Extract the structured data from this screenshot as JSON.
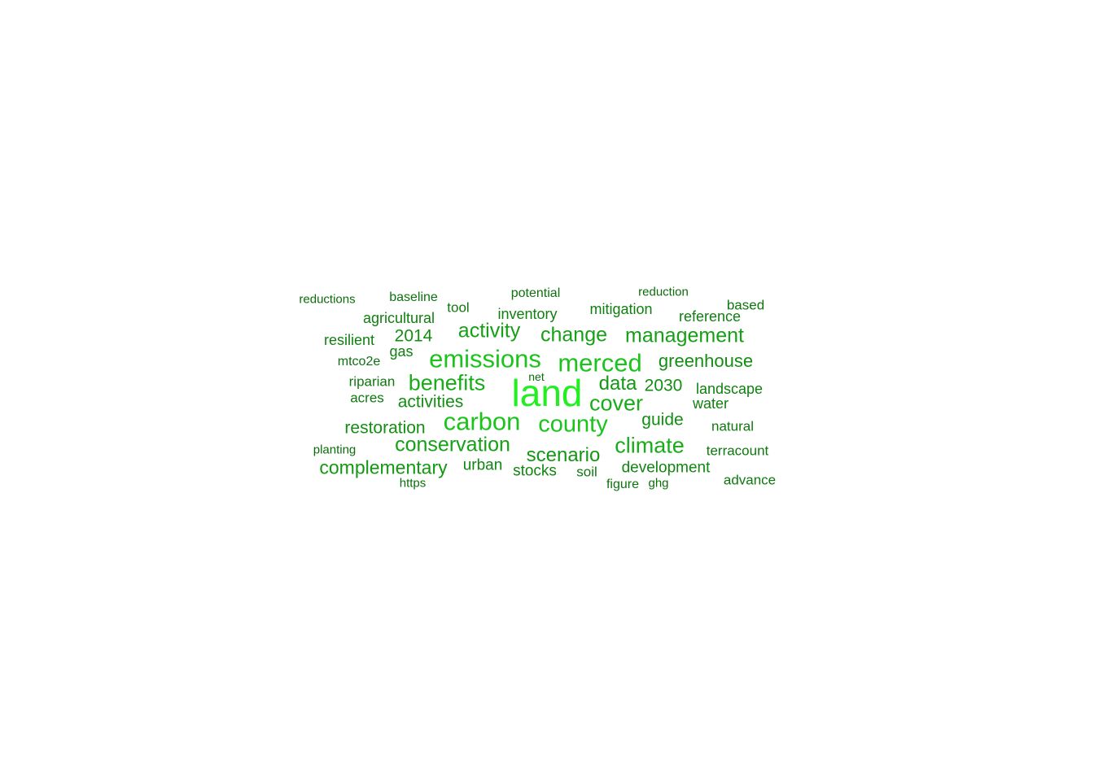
{
  "wordcloud": {
    "words": [
      {
        "text": "land",
        "color": "#22ee22"
      },
      {
        "text": "carbon",
        "color": "#1cc31c"
      },
      {
        "text": "merced",
        "color": "#1cc31c"
      },
      {
        "text": "emissions",
        "color": "#1cc31c"
      },
      {
        "text": "county",
        "color": "#1cc31c"
      },
      {
        "text": "climate",
        "color": "#18ad18"
      },
      {
        "text": "benefits",
        "color": "#18ad18"
      },
      {
        "text": "cover",
        "color": "#18ad18"
      },
      {
        "text": "activity",
        "color": "#15a015"
      },
      {
        "text": "change",
        "color": "#15a015"
      },
      {
        "text": "management",
        "color": "#15a015"
      },
      {
        "text": "conservation",
        "color": "#15a015"
      },
      {
        "text": "scenario",
        "color": "#139813"
      },
      {
        "text": "data",
        "color": "#139813"
      },
      {
        "text": "complementary",
        "color": "#139813"
      },
      {
        "text": "greenhouse",
        "color": "#128f12"
      },
      {
        "text": "2030",
        "color": "#128f12"
      },
      {
        "text": "guide",
        "color": "#128f12"
      },
      {
        "text": "restoration",
        "color": "#128f12"
      },
      {
        "text": "2014",
        "color": "#128f12"
      },
      {
        "text": "activities",
        "color": "#128f12"
      },
      {
        "text": "development",
        "color": "#108510"
      },
      {
        "text": "urban",
        "color": "#108510"
      },
      {
        "text": "stocks",
        "color": "#108510"
      },
      {
        "text": "landscape",
        "color": "#0f7f0f"
      },
      {
        "text": "reference",
        "color": "#0f7f0f"
      },
      {
        "text": "inventory",
        "color": "#0f7f0f"
      },
      {
        "text": "mitigation",
        "color": "#0f7f0f"
      },
      {
        "text": "water",
        "color": "#0f7f0f"
      },
      {
        "text": "agricultural",
        "color": "#0f7f0f"
      },
      {
        "text": "gas",
        "color": "#0f7f0f"
      },
      {
        "text": "resilient",
        "color": "#0f7f0f"
      },
      {
        "text": "terracount",
        "color": "#0e780e"
      },
      {
        "text": "natural",
        "color": "#0e780e"
      },
      {
        "text": "riparian",
        "color": "#0e780e"
      },
      {
        "text": "acres",
        "color": "#0e780e"
      },
      {
        "text": "tool",
        "color": "#0e780e"
      },
      {
        "text": "soil",
        "color": "#0e780e"
      },
      {
        "text": "based",
        "color": "#0e780e"
      },
      {
        "text": "advance",
        "color": "#0e780e"
      },
      {
        "text": "baseline",
        "color": "#0d720d"
      },
      {
        "text": "potential",
        "color": "#0d720d"
      },
      {
        "text": "mtco2e",
        "color": "#0d720d"
      },
      {
        "text": "figure",
        "color": "#0d720d"
      },
      {
        "text": "reduction",
        "color": "#0c6c0c"
      },
      {
        "text": "reductions",
        "color": "#0c6c0c"
      },
      {
        "text": "planting",
        "color": "#0c6c0c"
      },
      {
        "text": "ghg",
        "color": "#0c6c0c"
      },
      {
        "text": "https",
        "color": "#0c6c0c"
      },
      {
        "text": "net",
        "color": "#0c6c0c"
      }
    ]
  }
}
